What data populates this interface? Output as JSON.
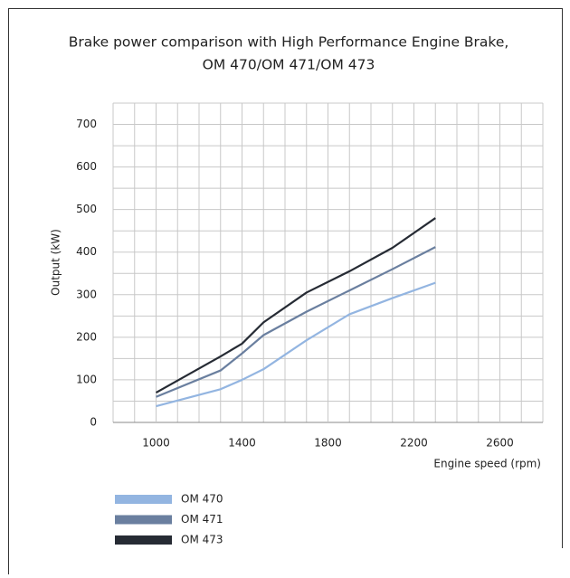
{
  "chart_data": {
    "type": "line",
    "title": [
      "Brake power comparison with High Performance Engine Brake,",
      "OM 470/OM 471/OM 473"
    ],
    "ylabel": "Output (kW)",
    "xlabel": "Engine speed (rpm)",
    "x": [
      1000,
      1300,
      1400,
      1500,
      1700,
      1900,
      2100,
      2300
    ],
    "series": [
      {
        "name": "OM 470",
        "color": "#93b5e1",
        "values": [
          38,
          78,
          100,
          125,
          193,
          254,
          292,
          328
        ]
      },
      {
        "name": "OM 471",
        "color": "#6a7f9f",
        "values": [
          60,
          122,
          162,
          205,
          260,
          310,
          360,
          412
        ]
      },
      {
        "name": "OM 473",
        "color": "#262b34",
        "values": [
          70,
          155,
          185,
          235,
          305,
          355,
          410,
          480
        ]
      }
    ],
    "xlim": [
      800,
      2800
    ],
    "xticks": [
      1000,
      1400,
      1800,
      2200,
      2600
    ],
    "xminor": [
      800,
      900,
      1100,
      1200,
      1300,
      1500,
      1600,
      1700,
      1900,
      2000,
      2100,
      2300,
      2400,
      2500,
      2700,
      2800
    ],
    "ylim": [
      0,
      750
    ],
    "yticks": [
      0,
      100,
      200,
      300,
      400,
      500,
      600,
      700
    ],
    "yminor": [
      50,
      150,
      250,
      350,
      450,
      550,
      650,
      750
    ],
    "grid": true
  }
}
